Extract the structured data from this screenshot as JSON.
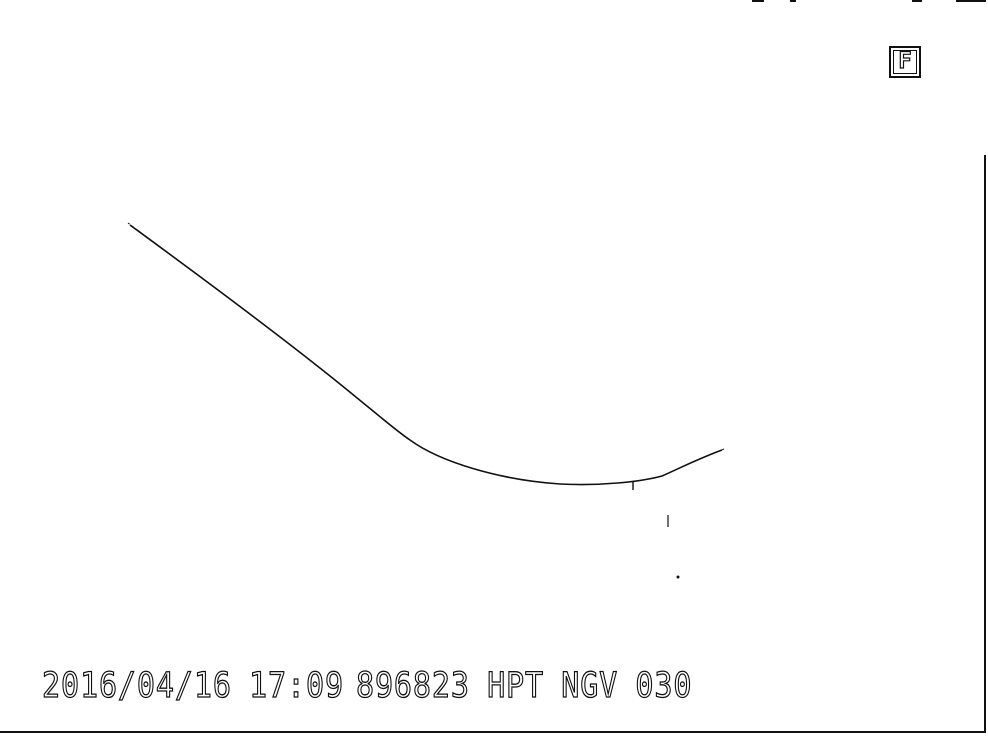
{
  "badge": {
    "letter": "F"
  },
  "stamp": {
    "date": "2016/04/16",
    "time": "17:09",
    "id": "896823",
    "code1": "HPT",
    "code2": "NGV",
    "channel": "030"
  },
  "colors": {
    "background": "#ffffff",
    "ink": "#111111"
  }
}
